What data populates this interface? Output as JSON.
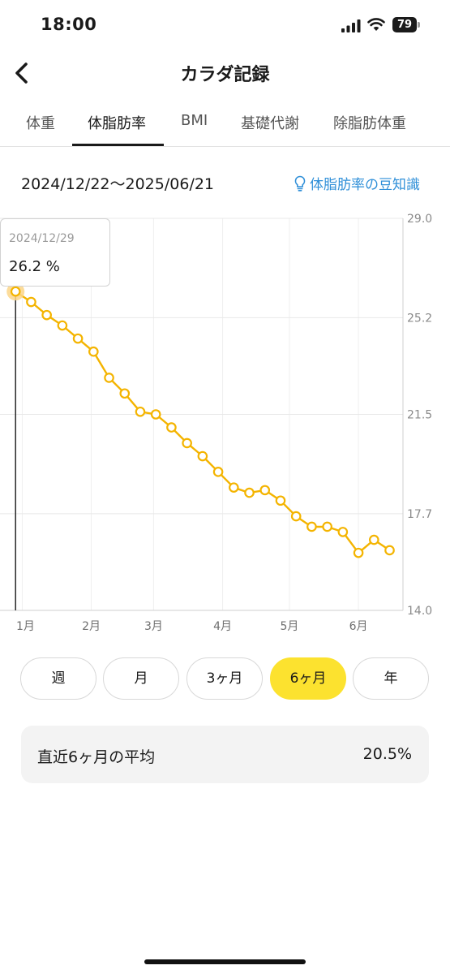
{
  "status_bar": {
    "time": "18:00",
    "battery": "79"
  },
  "header": {
    "title": "カラダ記録"
  },
  "tabs": [
    {
      "label": "体重",
      "active": false
    },
    {
      "label": "体脂肪率",
      "active": true
    },
    {
      "label": "BMI",
      "active": false
    },
    {
      "label": "基礎代謝",
      "active": false
    },
    {
      "label": "除脂肪体重",
      "active": false
    }
  ],
  "date_range": "2024/12/22〜2025/06/21",
  "tips_link": "体脂肪率の豆知識",
  "tooltip": {
    "date": "2024/12/29",
    "value": "26.2 %"
  },
  "chart_data": {
    "type": "line",
    "x_tick_labels": [
      "1月",
      "2月",
      "3月",
      "4月",
      "5月",
      "6月"
    ],
    "y_tick_labels": [
      "29.0",
      "25.2",
      "21.5",
      "17.7",
      "14.0"
    ],
    "ylim": [
      14.0,
      29.0
    ],
    "xlim": [
      "2024-12-22",
      "2025-06-21"
    ],
    "grid": true,
    "line_color": "#f4b400",
    "highlight_color": "#fbd68a",
    "selected_index": 0,
    "series": [
      {
        "points": [
          {
            "x": "2024-12-29",
            "y": 26.2
          },
          {
            "x": "2025-01-05",
            "y": 25.8
          },
          {
            "x": "2025-01-12",
            "y": 25.3
          },
          {
            "x": "2025-01-19",
            "y": 24.9
          },
          {
            "x": "2025-01-26",
            "y": 24.4
          },
          {
            "x": "2025-02-02",
            "y": 23.9
          },
          {
            "x": "2025-02-09",
            "y": 22.9
          },
          {
            "x": "2025-02-16",
            "y": 22.3
          },
          {
            "x": "2025-02-23",
            "y": 21.6
          },
          {
            "x": "2025-03-02",
            "y": 21.5
          },
          {
            "x": "2025-03-09",
            "y": 21.0
          },
          {
            "x": "2025-03-16",
            "y": 20.4
          },
          {
            "x": "2025-03-23",
            "y": 19.9
          },
          {
            "x": "2025-03-30",
            "y": 19.3
          },
          {
            "x": "2025-04-06",
            "y": 18.7
          },
          {
            "x": "2025-04-13",
            "y": 18.5
          },
          {
            "x": "2025-04-20",
            "y": 18.6
          },
          {
            "x": "2025-04-27",
            "y": 18.2
          },
          {
            "x": "2025-05-04",
            "y": 17.6
          },
          {
            "x": "2025-05-11",
            "y": 17.2
          },
          {
            "x": "2025-05-18",
            "y": 17.2
          },
          {
            "x": "2025-05-25",
            "y": 17.0
          },
          {
            "x": "2025-06-01",
            "y": 16.2
          },
          {
            "x": "2025-06-08",
            "y": 16.7
          },
          {
            "x": "2025-06-15",
            "y": 16.3
          }
        ]
      }
    ]
  },
  "period_buttons": [
    {
      "label": "週",
      "active": false
    },
    {
      "label": "月",
      "active": false
    },
    {
      "label": "3ヶ月",
      "active": false
    },
    {
      "label": "6ヶ月",
      "active": true
    },
    {
      "label": "年",
      "active": false
    }
  ],
  "average": {
    "label": "直近6ヶ月の平均",
    "value": "20.5%"
  }
}
